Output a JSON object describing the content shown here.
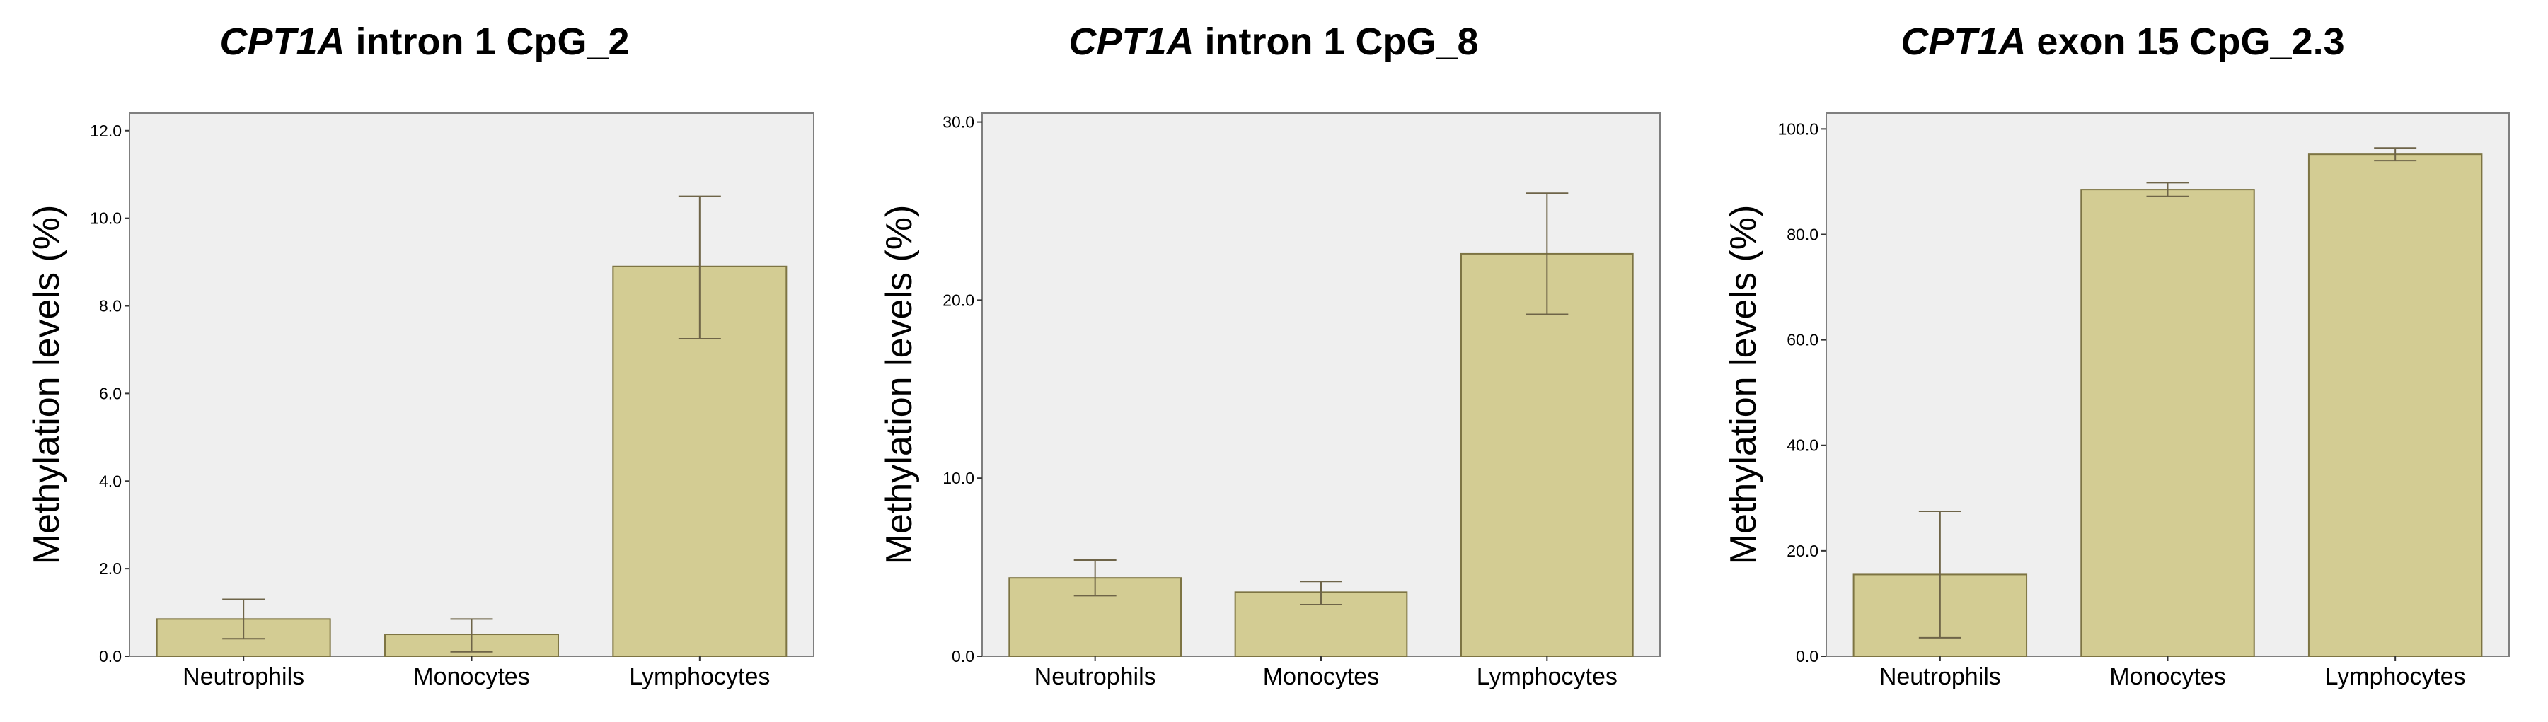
{
  "style": {
    "bar_fill": "#d3cc93",
    "bar_stroke": "#7d7443",
    "plot_bg": "#efefef",
    "frame": "#7f7f7f",
    "errorbar": "#6e6448"
  },
  "chart_data": [
    {
      "type": "bar",
      "title_gene": "CPT1A",
      "title_rest": " intron 1 CpG_2",
      "ylabel": "Methylation  levels (%)",
      "xlabel": "",
      "ylim": [
        0,
        12.4
      ],
      "yticks": [
        "0.0",
        "2.0",
        "4.0",
        "6.0",
        "8.0",
        "10.0",
        "12.0"
      ],
      "ytick_values": [
        0,
        2,
        4,
        6,
        8,
        10,
        12
      ],
      "categories": [
        "Neutrophils",
        "Monocytes",
        "Lymphocytes"
      ],
      "values": [
        0.85,
        0.5,
        8.9
      ],
      "error_low": [
        0.4,
        0.1,
        7.25
      ],
      "error_high": [
        1.3,
        0.85,
        10.5
      ],
      "grid": false,
      "legend": "none"
    },
    {
      "type": "bar",
      "title_gene": "CPT1A",
      "title_rest": " intron 1 CpG_8",
      "ylabel": "Methylation  levels (%)",
      "xlabel": "",
      "ylim": [
        0,
        30.5
      ],
      "yticks": [
        "0.0",
        "10.0",
        "20.0",
        "30.0"
      ],
      "ytick_values": [
        0,
        10,
        20,
        30
      ],
      "categories": [
        "Neutrophils",
        "Monocytes",
        "Lymphocytes"
      ],
      "values": [
        4.4,
        3.6,
        22.6
      ],
      "error_low": [
        3.4,
        2.9,
        19.2
      ],
      "error_high": [
        5.4,
        4.2,
        26.0
      ],
      "grid": false,
      "legend": "none"
    },
    {
      "type": "bar",
      "title_gene": "CPT1A",
      "title_rest": " exon 15 CpG_2.3",
      "ylabel": "Methylation  levels (%)",
      "xlabel": "",
      "ylim": [
        0,
        103
      ],
      "yticks": [
        "0.0",
        "20.0",
        "40.0",
        "60.0",
        "80.0",
        "100.0"
      ],
      "ytick_values": [
        0,
        20,
        40,
        60,
        80,
        100
      ],
      "categories": [
        "Neutrophils",
        "Monocytes",
        "Lymphocytes"
      ],
      "values": [
        15.5,
        88.5,
        95.2
      ],
      "error_low": [
        3.5,
        87.2,
        94.0
      ],
      "error_high": [
        27.5,
        89.8,
        96.4
      ],
      "grid": false,
      "legend": "none"
    }
  ]
}
